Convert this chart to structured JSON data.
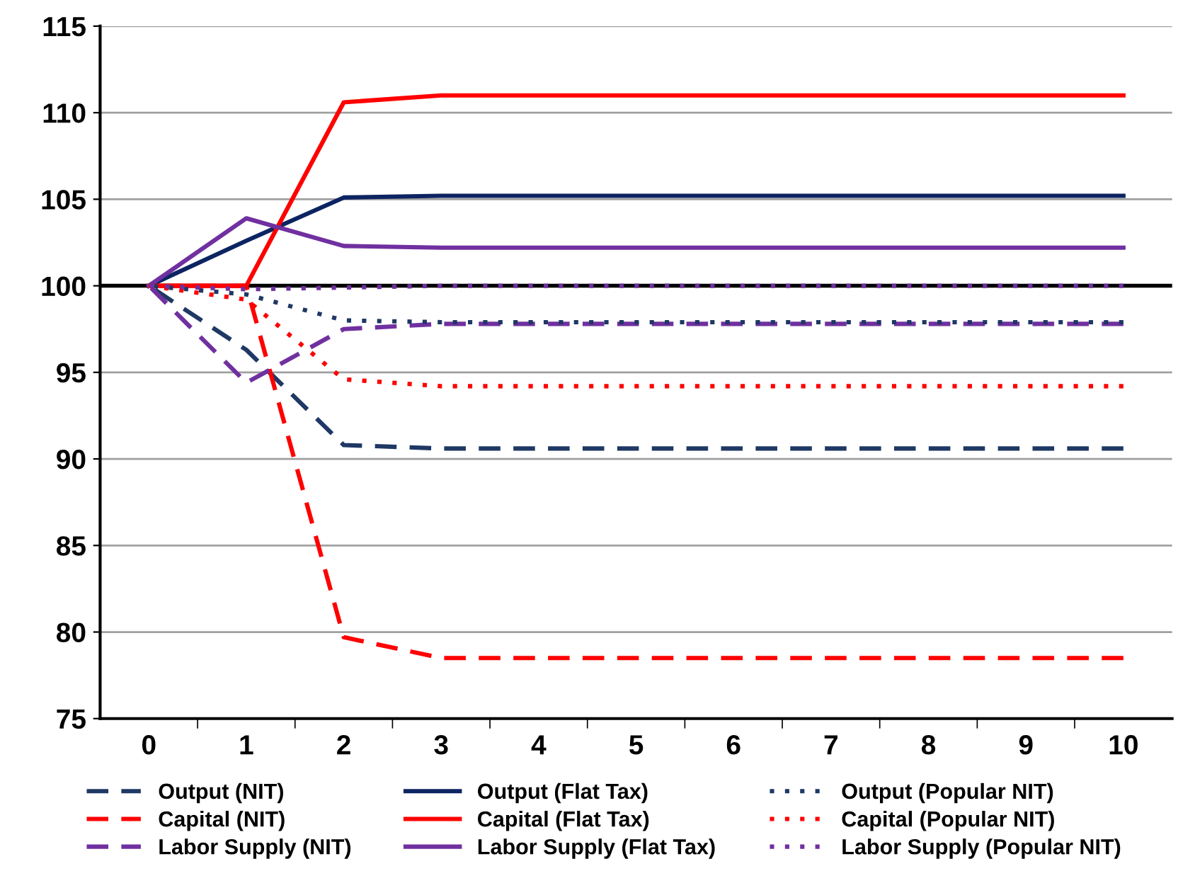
{
  "chart_data": {
    "type": "line",
    "categories": [
      "0",
      "1",
      "2",
      "3",
      "4",
      "5",
      "6",
      "7",
      "8",
      "9",
      "10"
    ],
    "ylim": [
      75,
      115
    ],
    "yticks": [
      75,
      80,
      85,
      90,
      95,
      100,
      105,
      110,
      115
    ],
    "grid": "y",
    "legend": "bottom",
    "ref_lines": [
      {
        "axis": "y",
        "value": 100,
        "color": "#000000",
        "line_style": "solid"
      }
    ],
    "series": [
      {
        "name": "Output (NIT)",
        "color": "#1f3864",
        "line_style": "dashed",
        "values": [
          100,
          96.3,
          90.8,
          90.6,
          90.6,
          90.6,
          90.6,
          90.6,
          90.6,
          90.6,
          90.6
        ]
      },
      {
        "name": "Capital (NIT)",
        "color": "#ff0000",
        "line_style": "dashed",
        "values": [
          100,
          100,
          79.7,
          78.5,
          78.5,
          78.5,
          78.5,
          78.5,
          78.5,
          78.5,
          78.5
        ]
      },
      {
        "name": "Labor Supply (NIT)",
        "color": "#7030a0",
        "line_style": "dashed",
        "values": [
          100,
          94.4,
          97.5,
          97.8,
          97.8,
          97.8,
          97.8,
          97.8,
          97.8,
          97.8,
          97.8
        ]
      },
      {
        "name": "Output (Flat Tax)",
        "color": "#0c2461",
        "line_style": "solid",
        "values": [
          100,
          102.6,
          105.1,
          105.2,
          105.2,
          105.2,
          105.2,
          105.2,
          105.2,
          105.2,
          105.2
        ]
      },
      {
        "name": "Capital (Flat Tax)",
        "color": "#ff0000",
        "line_style": "solid",
        "values": [
          100,
          100,
          110.6,
          111.0,
          111.0,
          111.0,
          111.0,
          111.0,
          111.0,
          111.0,
          111.0
        ]
      },
      {
        "name": "Labor Supply (Flat Tax)",
        "color": "#7030a0",
        "line_style": "solid",
        "values": [
          100,
          103.9,
          102.3,
          102.2,
          102.2,
          102.2,
          102.2,
          102.2,
          102.2,
          102.2,
          102.2
        ]
      },
      {
        "name": "Output (Popular NIT)",
        "color": "#1f3864",
        "line_style": "dotted",
        "values": [
          100,
          99.5,
          98.0,
          97.9,
          97.9,
          97.9,
          97.9,
          97.9,
          97.9,
          97.9,
          97.9
        ]
      },
      {
        "name": "Capital (Popular NIT)",
        "color": "#ff0000",
        "line_style": "dotted",
        "values": [
          100,
          99.2,
          94.6,
          94.2,
          94.2,
          94.2,
          94.2,
          94.2,
          94.2,
          94.2,
          94.2
        ]
      },
      {
        "name": "Labor Supply (Popular NIT)",
        "color": "#7030a0",
        "line_style": "dotted",
        "values": [
          100,
          99.8,
          99.9,
          100,
          100,
          100,
          100,
          100,
          100,
          100,
          100
        ]
      }
    ]
  }
}
